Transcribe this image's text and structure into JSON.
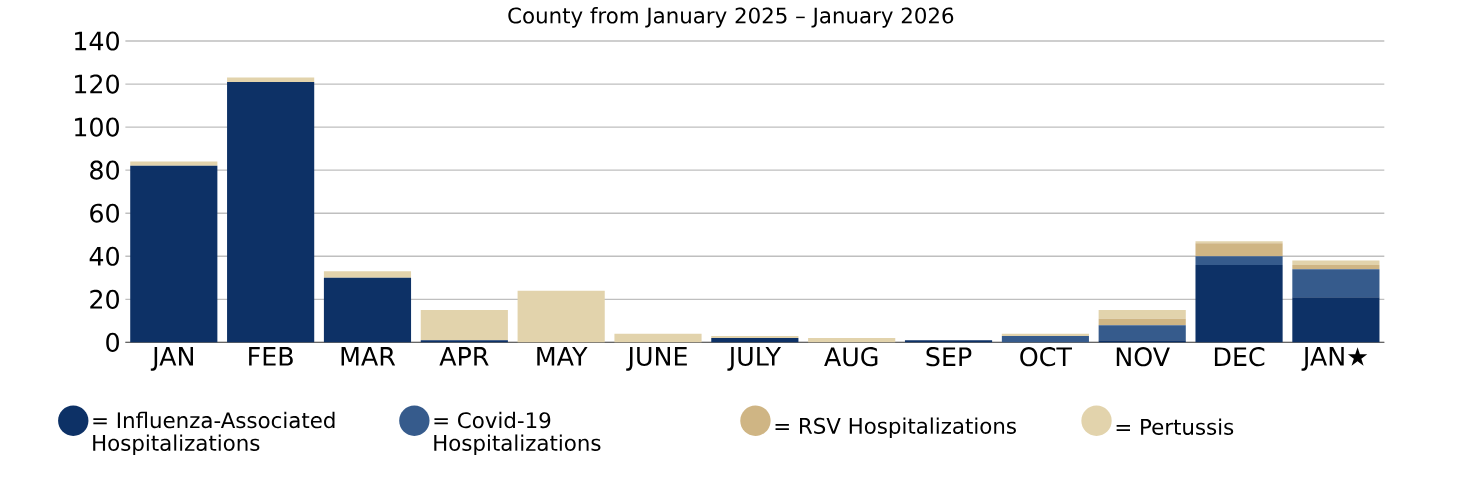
{
  "chart_data": {
    "type": "bar",
    "title": "County from January 2025 – January 2026",
    "stacked": true,
    "grid": "y",
    "legend": "bottom",
    "categories": [
      "JAN",
      "FEB",
      "MAR",
      "APR",
      "MAY",
      "JUNE",
      "JULY",
      "AUG",
      "SEP",
      "OCT",
      "NOV",
      "DEC",
      "JAN★"
    ],
    "ylim": [
      0,
      140
    ],
    "yticks": [
      0,
      20,
      40,
      60,
      80,
      100,
      120,
      140
    ],
    "series": [
      {
        "name": "= Influenza-Associated Hospitalizations",
        "color": "#0d3166",
        "values": [
          82,
          121,
          30,
          1,
          0,
          0,
          2,
          0,
          1,
          0,
          1,
          36,
          21
        ]
      },
      {
        "name": "= Covid-19 Hospitalizations",
        "color": "#365b8c",
        "values": [
          0,
          0,
          0,
          0,
          0,
          0,
          0,
          0,
          0,
          3,
          7,
          4,
          13
        ]
      },
      {
        "name": "= RSV Hospitalizations",
        "color": "#cfb584",
        "values": [
          0,
          0,
          0,
          0,
          0,
          0,
          0,
          0,
          0,
          0,
          3,
          6,
          2
        ]
      },
      {
        "name": "= Pertussis",
        "color": "#e2d3ac",
        "values": [
          2,
          2,
          3,
          14,
          24,
          4,
          1,
          2,
          0,
          1,
          4,
          1,
          2
        ]
      }
    ]
  }
}
